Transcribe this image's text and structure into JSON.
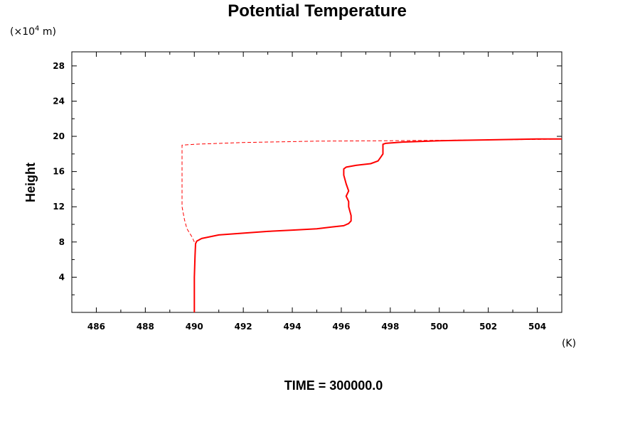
{
  "chart_data": {
    "type": "line",
    "title": "Potential Temperature",
    "ylabel": "Height",
    "yunits": "(×10",
    "yunits_exp": "4",
    "yunits_suffix": " m)",
    "xunits": "(K)",
    "footer": "TIME = 300000.0",
    "xlim": [
      485,
      505
    ],
    "ylim": [
      0,
      29.6
    ],
    "xticks": [
      486,
      488,
      490,
      492,
      494,
      496,
      498,
      500,
      502,
      504
    ],
    "yticks": [
      4,
      8,
      12,
      16,
      20,
      24,
      28
    ],
    "xtick_labels": [
      "486",
      "488",
      "490",
      "492",
      "494",
      "496",
      "498",
      "500",
      "502",
      "504"
    ],
    "ytick_labels": [
      "4",
      "8",
      "12",
      "16",
      "20",
      "24",
      "28"
    ],
    "grid": false,
    "color": "#ff0000",
    "series": [
      {
        "style": "solid",
        "x": [
          490.0,
          490.0,
          490.03,
          490.05,
          490.1,
          490.3,
          491.0,
          492.0,
          493.0,
          494.0,
          495.0,
          495.6,
          496.1,
          496.3,
          496.4,
          496.4,
          496.3,
          496.3,
          496.2,
          496.3,
          496.2,
          496.1,
          496.1,
          496.2,
          496.6,
          497.2,
          497.5,
          497.6,
          497.7,
          497.7,
          497.8,
          498.5,
          500.0,
          502.0,
          504.0,
          505.0
        ],
        "y": [
          0.0,
          4.0,
          6.5,
          7.8,
          8.1,
          8.4,
          8.8,
          9.0,
          9.2,
          9.35,
          9.5,
          9.7,
          9.85,
          10.1,
          10.4,
          11.0,
          12.0,
          12.6,
          13.2,
          13.8,
          14.6,
          15.6,
          16.3,
          16.5,
          16.7,
          16.9,
          17.2,
          17.6,
          18.0,
          19.1,
          19.2,
          19.35,
          19.5,
          19.6,
          19.7,
          19.7
        ]
      },
      {
        "style": "dashed",
        "x": [
          490.0,
          489.9,
          489.7,
          489.6,
          489.5,
          489.5,
          489.5,
          489.5,
          490.0,
          492.0,
          495.0,
          498.0,
          500.0,
          502.0,
          504.0,
          505.0
        ],
        "y": [
          8.0,
          8.6,
          9.5,
          10.5,
          12.0,
          14.0,
          17.0,
          19.0,
          19.1,
          19.3,
          19.45,
          19.5,
          19.55,
          19.6,
          19.65,
          19.7
        ]
      }
    ]
  }
}
